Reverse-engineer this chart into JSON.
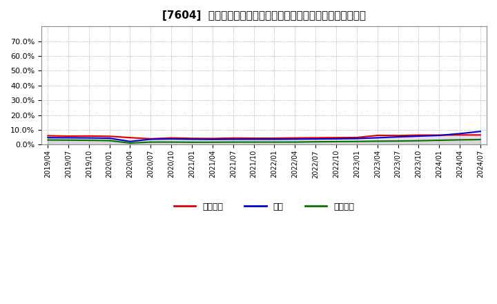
{
  "title": "[7604]  売上債権、在庫、買入債務の総資産に対する比率の推移",
  "ylim": [
    0.0,
    0.8
  ],
  "yticks": [
    0.0,
    0.1,
    0.2,
    0.3,
    0.4,
    0.5,
    0.6,
    0.7
  ],
  "legend_labels": [
    "売上債権",
    "在庫",
    "買入債務"
  ],
  "line_colors": [
    "#dd0000",
    "#0000cc",
    "#007700"
  ],
  "background_color": "#ffffff",
  "grid_color": "#999999",
  "dates": [
    "2019/04",
    "2019/07",
    "2019/10",
    "2020/01",
    "2020/04",
    "2020/07",
    "2020/10",
    "2021/01",
    "2021/04",
    "2021/07",
    "2021/10",
    "2022/01",
    "2022/04",
    "2022/07",
    "2022/10",
    "2023/01",
    "2023/04",
    "2023/07",
    "2023/10",
    "2024/01",
    "2024/04",
    "2024/07"
  ],
  "series_urikake": [
    0.061,
    0.058,
    0.059,
    0.057,
    0.048,
    0.04,
    0.046,
    0.043,
    0.042,
    0.045,
    0.044,
    0.044,
    0.046,
    0.047,
    0.048,
    0.049,
    0.063,
    0.062,
    0.065,
    0.065,
    0.066,
    0.066
  ],
  "series_zaiko": [
    0.048,
    0.047,
    0.046,
    0.044,
    0.022,
    0.037,
    0.039,
    0.037,
    0.036,
    0.037,
    0.037,
    0.037,
    0.038,
    0.039,
    0.04,
    0.042,
    0.047,
    0.053,
    0.058,
    0.063,
    0.075,
    0.09
  ],
  "series_kaiire": [
    0.032,
    0.031,
    0.03,
    0.028,
    0.011,
    0.018,
    0.018,
    0.017,
    0.017,
    0.018,
    0.018,
    0.018,
    0.018,
    0.02,
    0.021,
    0.022,
    0.024,
    0.025,
    0.027,
    0.03,
    0.033,
    0.035
  ]
}
